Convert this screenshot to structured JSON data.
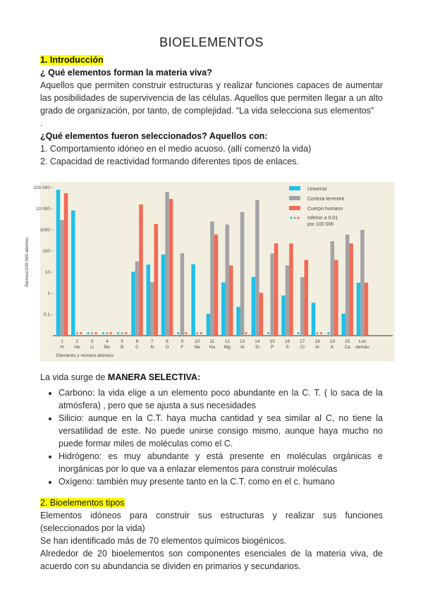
{
  "title": "BIOELEMENTOS",
  "intro": {
    "heading": "1. Introducción",
    "q1": "¿ Qué elementos forman la materia viva?",
    "p1": "Aquellos que permiten construir estructuras y realizar funciones capaces de aumentar las posibilidades de supervivencia de las células. Aquellos que permiten llegar a un alto grado de organización, por tanto, de complejidad. “La vida selecciona sus elementos”",
    "dot": ".",
    "q2": "¿Qué elementos fueron seleccionados? Aquellos con:",
    "items": [
      "1. Comportamiento idóneo en el medio acuoso. (allí comenzó la vida)",
      "2. Capacidad de reactividad formando diferentes tipos de enlaces."
    ]
  },
  "chart_data": {
    "type": "bar",
    "ylabel": "Átomos/100 000 átomos",
    "xlabel": "Elemento y número atómico",
    "yscale": "log",
    "ylim": [
      0.01,
      100000
    ],
    "yticks": [
      "100 000",
      "10 000",
      "1000",
      "100",
      "10",
      "1",
      "0.1"
    ],
    "ytick_values": [
      100000,
      10000,
      1000,
      100,
      10,
      1,
      0.1
    ],
    "categories": [
      [
        "1",
        "H"
      ],
      [
        "2",
        "He"
      ],
      [
        "3",
        "Li"
      ],
      [
        "4",
        "Be"
      ],
      [
        "5",
        "B"
      ],
      [
        "6",
        "C"
      ],
      [
        "7",
        "N"
      ],
      [
        "8",
        "O"
      ],
      [
        "9",
        "F"
      ],
      [
        "10",
        "Ne"
      ],
      [
        "11",
        "Na"
      ],
      [
        "12",
        "Mg"
      ],
      [
        "13",
        "Al"
      ],
      [
        "14",
        "Si"
      ],
      [
        "15",
        "P"
      ],
      [
        "16",
        "S"
      ],
      [
        "17",
        "Cl"
      ],
      [
        "18",
        "Ar"
      ],
      [
        "19",
        "K"
      ],
      [
        "20",
        "Ca"
      ],
      [
        "Los",
        "demás"
      ]
    ],
    "series": [
      {
        "name": "Universo",
        "color": "#1ec0ea",
        "values": [
          79000,
          8300,
          null,
          null,
          null,
          10.5,
          23,
          69,
          null,
          24,
          0.11,
          3.3,
          0.23,
          6,
          null,
          0.8,
          null,
          0.36,
          null,
          0.11,
          3.2
        ]
      },
      {
        "name": "Corteza terrestre",
        "color": "#a3a3a6",
        "values": [
          2900,
          null,
          null,
          null,
          null,
          32,
          3.4,
          62000,
          78,
          null,
          2500,
          1800,
          6900,
          26000,
          77,
          21,
          5.8,
          null,
          290,
          600,
          1000
        ]
      },
      {
        "name": "Cuerpo humano",
        "color": "#f46a55",
        "values": [
          54000,
          null,
          null,
          null,
          null,
          16000,
          1900,
          29000,
          null,
          null,
          610,
          21,
          null,
          1.07,
          230,
          230,
          38,
          null,
          38,
          230,
          3.2
        ]
      }
    ],
    "null_marker_label": [
      "Inferior a 0.01",
      "por 100 000"
    ],
    "legend": "top-right",
    "background": "#f3efe0"
  },
  "selection": {
    "lead": "La vida surge de ",
    "lead_bold": "MANERA SELECTIVA:",
    "bullets": [
      "Carbono: la vida elige a un elemento poco abundante en la C. T. ( lo saca de la atmósfera) , pero que se ajusta a sus necesidades",
      "Silicio: aunque en la C.T. haya mucha cantidad y sea similar al C, no tiene la versatilidad de este. No puede unirse consigo mismo, aunque haya mucho no puede formar miles de moléculas como el C.",
      "Hidrógeno: es muy abundante y está presente en moléculas orgánicas e inorgánicas por lo que va a enlazar elementos para construir moléculas",
      "Oxígeno: también muy presente tanto en la C.T. como en el c. humano"
    ]
  },
  "types": {
    "heading": "2. Bioelementos tipos",
    "lines": [
      "Elementos idóneos para construir sus estructuras y realizar sus funciones (seleccionados por la vida)",
      "Se han identificado más de 70 elementos químicos biogénicos.",
      "Alrededor de 20 bioelementos son componentes esenciales de la materia viva, de acuerdo con su abundancia se dividen en primarios y secundarios."
    ]
  }
}
